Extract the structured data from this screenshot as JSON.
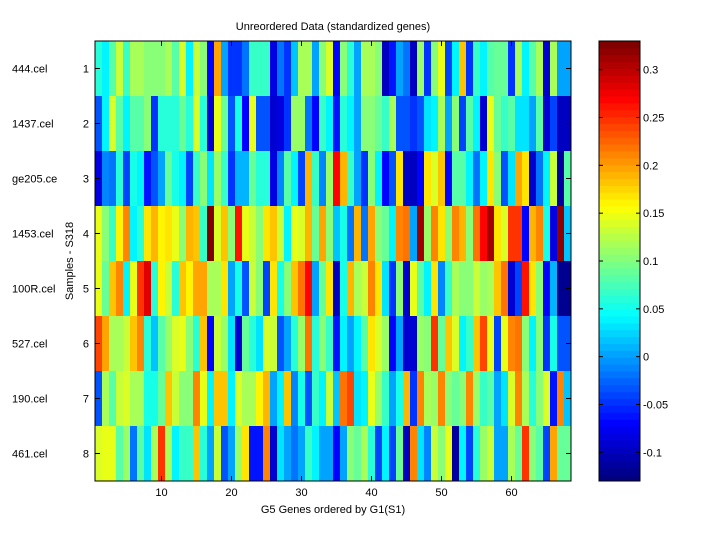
{
  "chart_data": {
    "type": "heatmap",
    "title": "Unreordered Data (standardized genes)",
    "xlabel": "G5 Genes ordered by G1(S1)",
    "ylabel": "Samples - S318",
    "xlim": [
      0.5,
      68.5
    ],
    "ylim": [
      0.5,
      8.5
    ],
    "x_ticks": [
      10,
      20,
      30,
      40,
      50,
      60
    ],
    "y_ticks": [
      1,
      2,
      3,
      4,
      5,
      6,
      7,
      8
    ],
    "row_labels": [
      "444.cel",
      "1437.cel",
      "ge205.ce",
      "1453.cel",
      "100R.cel",
      "527.cel",
      "190.cel",
      "461.cel"
    ],
    "colormap": "jet",
    "clim": [
      -0.13,
      0.33
    ],
    "colorbar_ticks": [
      -0.1,
      -0.05,
      0,
      0.05,
      0.1,
      0.15,
      0.2,
      0.25,
      0.3
    ],
    "colorbar_tick_labels": [
      "-0.1",
      "-0.05",
      "0",
      "0.05",
      "0.1",
      "0.15",
      "0.2",
      "0.25",
      "0.3"
    ],
    "values": [
      [
        0.06,
        0.04,
        0.08,
        0.13,
        0.07,
        0.12,
        0.12,
        0.1,
        0.1,
        0.1,
        0.12,
        0.08,
        0.14,
        0.04,
        0.13,
        0.1,
        -0.07,
        0.2,
        0.0,
        -0.05,
        -0.05,
        -0.02,
        0.07,
        0.07,
        0.07,
        -0.08,
        -0.02,
        -0.05,
        0.02,
        0.12,
        0.12,
        0.0,
        0.1,
        0.14,
        -0.07,
        0.1,
        0.06,
        0.0,
        0.12,
        0.12,
        0.1,
        -0.1,
        -0.06,
        0.0,
        -0.02,
        -0.1,
        0.11,
        -0.05,
        0.1,
        0.15,
        -0.04,
        0.04,
        0.18,
        -0.05,
        0.07,
        0.04,
        0.08,
        0.09,
        0.09,
        -0.05,
        0.12,
        0.04,
        0.08,
        0.12,
        -0.09,
        0.12,
        0.0,
        0.0
      ],
      [
        -0.03,
        0.04,
        0.14,
        0.08,
        0.04,
        0.08,
        0.08,
        0.1,
        -0.05,
        0.06,
        0.06,
        0.06,
        0.09,
        0.06,
        0.14,
        0.06,
        -0.09,
        0.15,
        0.09,
        -0.03,
        0.05,
        -0.07,
        0.15,
        -0.03,
        -0.03,
        -0.09,
        -0.08,
        -0.05,
        0.11,
        0.11,
        -0.02,
        -0.07,
        0.07,
        0.04,
        -0.06,
        0.06,
        0.04,
        0.0,
        0.1,
        0.1,
        0.09,
        0.07,
        0.12,
        -0.03,
        -0.03,
        -0.05,
        -0.03,
        0.03,
        0.04,
        0.12,
        0.0,
        0.1,
        -0.04,
        0.08,
        0.04,
        -0.09,
        0.15,
        0.09,
        0.07,
        0.08,
        0.03,
        0.03,
        0.0,
        0.08,
        -0.09,
        -0.04,
        -0.1,
        -0.1
      ],
      [
        -0.08,
        -0.01,
        -0.02,
        0.06,
        -0.04,
        0.05,
        0.04,
        -0.06,
        -0.03,
        0.0,
        0.09,
        0.05,
        0.04,
        -0.04,
        0.07,
        0.1,
        0.03,
        0.11,
        0.07,
        -0.05,
        0.01,
        0.01,
        0.09,
        0.06,
        0.06,
        -0.08,
        -0.01,
        0.08,
        0.04,
        -0.04,
        0.19,
        0.07,
        -0.01,
        0.11,
        0.27,
        0.19,
        0.07,
        0.0,
        -0.05,
        0.1,
        0.04,
        -0.07,
        -0.03,
        0.17,
        -0.1,
        -0.1,
        -0.07,
        0.17,
        0.14,
        0.18,
        -0.07,
        0.08,
        0.08,
        0.04,
        -0.02,
        0.04,
        0.17,
        0.1,
        -0.03,
        0.03,
        0.2,
        0.17,
        -0.09,
        -0.02,
        0.04,
        0.13,
        -0.11,
        0.08
      ],
      [
        0.15,
        0.1,
        0.07,
        0.16,
        0.21,
        0.04,
        0.06,
        0.17,
        0.19,
        0.16,
        0.17,
        0.15,
        0.1,
        0.19,
        0.18,
        0.07,
        0.33,
        0.14,
        0.18,
        0.1,
        0.26,
        0.15,
        0.13,
        0.1,
        0.17,
        0.18,
        0.13,
        0.04,
        0.15,
        0.14,
        0.19,
        0.09,
        0.2,
        0.1,
        0.02,
        0.05,
        -0.02,
        0.19,
        -0.02,
        0.2,
        0.1,
        0.09,
        0.04,
        0.21,
        0.22,
        0.0,
        0.31,
        0.11,
        0.21,
        0.17,
        0.1,
        0.21,
        0.19,
        0.1,
        0.22,
        0.27,
        0.31,
        0.17,
        0.14,
        0.25,
        0.25,
        -0.07,
        0.19,
        0.21,
        0.05,
        -0.08,
        0.32,
        0.02
      ],
      [
        0.15,
        0.09,
        0.18,
        0.21,
        0.04,
        0.15,
        0.25,
        0.28,
        0.06,
        0.16,
        0.13,
        0.06,
        0.18,
        0.16,
        0.2,
        0.2,
        0.12,
        0.12,
        0.17,
        0.0,
        0.05,
        -0.03,
        0.13,
        0.1,
        -0.04,
        0.17,
        0.05,
        0.1,
        0.18,
        0.22,
        0.27,
        0.0,
        0.09,
        0.17,
        -0.1,
        0.05,
        0.19,
        0.12,
        0.13,
        0.21,
        0.17,
        0.03,
        -0.05,
        0.1,
        -0.09,
        0.15,
        0.08,
        0.04,
        0.17,
        -0.01,
        0.07,
        0.12,
        0.1,
        0.1,
        0.13,
        0.11,
        0.12,
        0.18,
        0.22,
        -0.09,
        -0.04,
        0.26,
        0.17,
        0.1,
        -0.07,
        0.01,
        -0.12,
        -0.12
      ],
      [
        0.24,
        0.2,
        0.12,
        0.12,
        0.13,
        0.18,
        0.21,
        0.06,
        0.02,
        0.08,
        0.11,
        0.14,
        0.15,
        0.1,
        0.06,
        0.18,
        -0.07,
        0.13,
        0.11,
        0.03,
        -0.09,
        0.09,
        0.06,
        0.03,
        0.14,
        0.13,
        -0.03,
        0.0,
        0.06,
        0.11,
        0.22,
        0.06,
        0.1,
        0.07,
        -0.06,
        0.04,
        0.0,
        0.04,
        0.08,
        0.17,
        0.14,
        0.11,
        -0.07,
        0.0,
        -0.09,
        -0.09,
        0.11,
        0.1,
        0.25,
        0.09,
        0.18,
        0.14,
        0.04,
        0.07,
        0.18,
        0.24,
        0.15,
        -0.04,
        0.15,
        0.21,
        0.22,
        0.1,
        0.04,
        0.1,
        -0.05,
        0.05,
        -0.03,
        -0.03
      ],
      [
        -0.03,
        0.12,
        0.08,
        0.13,
        0.14,
        0.12,
        0.12,
        0.05,
        0.05,
        0.09,
        0.18,
        0.13,
        0.1,
        0.1,
        0.21,
        0.15,
        0.04,
        0.18,
        0.18,
        0.04,
        0.14,
        0.12,
        0.12,
        0.16,
        0.19,
        0.0,
        0.04,
        0.18,
        -0.01,
        0.05,
        -0.03,
        0.07,
        0.04,
        0.13,
        0.02,
        0.22,
        0.24,
        0.03,
        0.04,
        0.15,
        0.11,
        0.07,
        0.0,
        0.05,
        0.19,
        -0.05,
        0.21,
        0.12,
        0.11,
        0.21,
        0.1,
        0.09,
        0.1,
        0.21,
        0.11,
        0.07,
        0.08,
        0.0,
        0.03,
        0.14,
        0.21,
        0.12,
        0.06,
        0.1,
        0.14,
        -0.06,
        0.21,
        0.02
      ],
      [
        0.14,
        0.15,
        0.15,
        0.08,
        0.11,
        -0.02,
        0.08,
        0.03,
        0.12,
        0.25,
        0.12,
        0.04,
        0.07,
        0.07,
        0.18,
        0.06,
        0.0,
        0.13,
        -0.03,
        0.0,
        0.11,
        0.17,
        -0.06,
        -0.06,
        0.21,
        -0.09,
        0.03,
        0.0,
        -0.02,
        0.0,
        0.07,
        0.04,
        0.0,
        0.0,
        -0.07,
        0.0,
        0.1,
        0.09,
        0.12,
        0.06,
        -0.04,
        0.04,
        -0.04,
        0.09,
        -0.1,
        0.21,
        0.03,
        -0.01,
        0.13,
        0.1,
        0.15,
        -0.11,
        0.04,
        -0.04,
        0.06,
        0.11,
        0.13,
        0.0,
        0.0,
        0.12,
        0.09,
        0.25,
        0.1,
        0.08,
        -0.04,
        0.2,
        0.09,
        0.09
      ]
    ]
  }
}
